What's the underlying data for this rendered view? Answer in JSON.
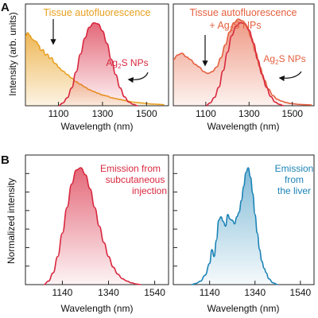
{
  "figure": {
    "panel_a_label": "A",
    "panel_b_label": "B",
    "panel_a_ylabel": "Intensity (arb. units)",
    "panel_b_ylabel": "Normalized intensity"
  },
  "colors": {
    "orange": "#E8A020",
    "red": "#D8283F",
    "coral": "#E5603F",
    "blue": "#1B83B6",
    "axis": "#222222"
  },
  "chart_data": [
    {
      "panel": "A-left",
      "type": "area",
      "xlabel": "Wavelength (nm)",
      "xlim": [
        950,
        1600
      ],
      "ylim": [
        0,
        1
      ],
      "xticks": [
        "1100",
        "1300",
        "1500"
      ],
      "annotations": [
        "Tissue autofluorescence",
        "Ag2S NPs"
      ],
      "series": [
        {
          "name": "Tissue autofluorescence",
          "x": [
            950,
            960,
            970,
            980,
            990,
            1000,
            1010,
            1020,
            1030,
            1040,
            1050,
            1060,
            1070,
            1080,
            1090,
            1100,
            1120,
            1140,
            1160,
            1180,
            1200,
            1220,
            1240,
            1260,
            1280,
            1300,
            1320,
            1340,
            1360,
            1380,
            1400,
            1420,
            1440,
            1460,
            1480,
            1500,
            1520,
            1540,
            1560,
            1580
          ],
          "y": [
            0.78,
            0.82,
            0.79,
            0.75,
            0.73,
            0.72,
            0.68,
            0.62,
            0.63,
            0.57,
            0.58,
            0.53,
            0.54,
            0.48,
            0.47,
            0.43,
            0.39,
            0.35,
            0.31,
            0.27,
            0.24,
            0.21,
            0.18,
            0.16,
            0.14,
            0.12,
            0.11,
            0.09,
            0.08,
            0.07,
            0.06,
            0.05,
            0.04,
            0.035,
            0.03,
            0.025,
            0.02,
            0.018,
            0.015,
            0.012
          ]
        },
        {
          "name": "Ag2S NPs",
          "x": [
            1100,
            1120,
            1140,
            1160,
            1180,
            1200,
            1220,
            1240,
            1260,
            1280,
            1300,
            1320,
            1340,
            1360,
            1380,
            1400,
            1420,
            1440,
            1460
          ],
          "y": [
            0.0,
            0.03,
            0.09,
            0.2,
            0.38,
            0.58,
            0.76,
            0.88,
            0.93,
            0.92,
            0.84,
            0.7,
            0.52,
            0.35,
            0.2,
            0.1,
            0.04,
            0.015,
            0.0
          ]
        }
      ]
    },
    {
      "panel": "A-right",
      "type": "area",
      "xlabel": "Wavelength (nm)",
      "xlim": [
        950,
        1600
      ],
      "ylim": [
        0,
        1
      ],
      "xticks": [
        "1100",
        "1300",
        "1500"
      ],
      "annotations": [
        "Tissue autofluorescence",
        "+ Ag2S NPs",
        "Ag2S NPs"
      ],
      "series": [
        {
          "name": "Tissue autofluorescence + Ag2S NPs",
          "x": [
            950,
            970,
            990,
            1010,
            1030,
            1050,
            1070,
            1090,
            1110,
            1130,
            1150,
            1170,
            1190,
            1210,
            1230,
            1250,
            1270,
            1290,
            1310,
            1330,
            1350,
            1370,
            1390,
            1410,
            1430,
            1450,
            1470,
            1490,
            1510,
            1530,
            1550,
            1570,
            1590
          ],
          "y": [
            0.5,
            0.55,
            0.57,
            0.53,
            0.5,
            0.45,
            0.42,
            0.37,
            0.35,
            0.37,
            0.42,
            0.52,
            0.66,
            0.8,
            0.9,
            0.94,
            0.92,
            0.86,
            0.74,
            0.58,
            0.42,
            0.28,
            0.18,
            0.11,
            0.07,
            0.05,
            0.035,
            0.025,
            0.02,
            0.015,
            0.012,
            0.01,
            0.008
          ]
        },
        {
          "name": "Ag2S NPs",
          "x": [
            1100,
            1120,
            1140,
            1160,
            1180,
            1200,
            1220,
            1240,
            1260,
            1280,
            1300,
            1320,
            1340,
            1360,
            1380,
            1400,
            1420,
            1440,
            1460
          ],
          "y": [
            0.0,
            0.03,
            0.09,
            0.2,
            0.38,
            0.58,
            0.76,
            0.86,
            0.9,
            0.89,
            0.82,
            0.68,
            0.5,
            0.34,
            0.2,
            0.1,
            0.04,
            0.015,
            0.0
          ]
        }
      ]
    },
    {
      "panel": "B-left",
      "type": "area",
      "xlabel": "Wavelength (nm)",
      "xlim": [
        980,
        1600
      ],
      "ylim": [
        0,
        1
      ],
      "xticks": [
        "1140",
        "1340",
        "1540"
      ],
      "annotations": [
        "Emission from",
        "subcutaneous",
        "injection"
      ],
      "series": [
        {
          "name": "Emission from subcutaneous injection",
          "x": [
            1060,
            1080,
            1100,
            1120,
            1140,
            1160,
            1180,
            1200,
            1220,
            1240,
            1260,
            1280,
            1300,
            1320,
            1340,
            1360,
            1380,
            1400,
            1420,
            1440,
            1460,
            1480
          ],
          "y": [
            0.0,
            0.03,
            0.1,
            0.24,
            0.44,
            0.66,
            0.86,
            0.98,
            1.0,
            0.94,
            0.82,
            0.66,
            0.5,
            0.36,
            0.24,
            0.15,
            0.09,
            0.05,
            0.03,
            0.015,
            0.005,
            0.0
          ]
        }
      ]
    },
    {
      "panel": "B-right",
      "type": "area",
      "xlabel": "Wavelength (nm)",
      "xlim": [
        980,
        1600
      ],
      "ylim": [
        0,
        1
      ],
      "xticks": [
        "1140",
        "1340",
        "1540"
      ],
      "annotations": [
        "Emission",
        "from",
        "the liver"
      ],
      "series": [
        {
          "name": "Emission from the liver",
          "x": [
            1060,
            1080,
            1100,
            1120,
            1140,
            1150,
            1160,
            1170,
            1180,
            1190,
            1200,
            1210,
            1220,
            1230,
            1240,
            1250,
            1260,
            1270,
            1280,
            1290,
            1300,
            1310,
            1320,
            1330,
            1340,
            1350,
            1360,
            1370,
            1380,
            1390,
            1400,
            1420,
            1440
          ],
          "y": [
            0.0,
            0.01,
            0.03,
            0.08,
            0.18,
            0.3,
            0.24,
            0.38,
            0.55,
            0.58,
            0.54,
            0.5,
            0.6,
            0.56,
            0.55,
            0.52,
            0.58,
            0.62,
            0.72,
            0.84,
            0.96,
            1.0,
            0.92,
            0.78,
            0.6,
            0.44,
            0.3,
            0.2,
            0.14,
            0.1,
            0.05,
            0.015,
            0.0
          ]
        }
      ]
    }
  ]
}
